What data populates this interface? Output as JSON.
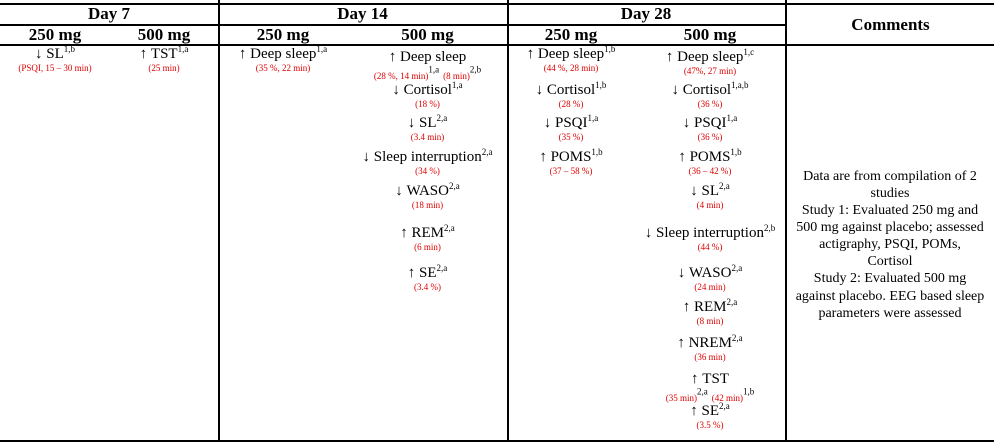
{
  "headers": {
    "day7": "Day 7",
    "day14": "Day 14",
    "day28": "Day 28",
    "comments": "Comments",
    "dose_250": "250 mg",
    "dose_500": "500 mg"
  },
  "day7_250": [
    {
      "arrow": "↓",
      "label": "SL",
      "sup": "1,b",
      "detail": "(PSQI, 15 – 30 min)"
    }
  ],
  "day7_500": [
    {
      "arrow": "↑",
      "label": "TST",
      "sup": "1,a",
      "detail": "(25 min)"
    }
  ],
  "day14_250": [
    {
      "arrow": "↑",
      "label": "Deep sleep",
      "sup": "1,a",
      "detail": "(35 %, 22 min)"
    }
  ],
  "day14_500": [
    {
      "arrow": "↑",
      "label": "Deep sleep",
      "sup": "",
      "detail": "",
      "inline": [
        {
          "detail": "(28 %, 14 min)",
          "sup": "1,a"
        },
        {
          "detail": "(8 min)",
          "sup": "2,b"
        }
      ]
    },
    {
      "arrow": "↓",
      "label": "Cortisol",
      "sup": "1,a",
      "detail": "(18 %)"
    },
    {
      "arrow": "↓",
      "label": "SL",
      "sup": "2,a",
      "detail": "(3.4 min)"
    },
    {
      "arrow": "↓",
      "label": "Sleep interruption",
      "sup": "2,a",
      "detail": "(34 %)"
    },
    {
      "arrow": "↓",
      "label": "WASO",
      "sup": "2,a",
      "detail": "(18 min)"
    },
    {
      "arrow": "↑",
      "label": "REM",
      "sup": "2,a",
      "detail": "(6 min)"
    },
    {
      "arrow": "↑",
      "label": "SE",
      "sup": "2,a",
      "detail": "(3.4 %)"
    }
  ],
  "day28_250": [
    {
      "arrow": "↑",
      "label": "Deep sleep",
      "sup": "1,b",
      "detail": "(44 %, 28 min)"
    },
    {
      "arrow": "↓",
      "label": "Cortisol",
      "sup": "1,b",
      "detail": "(28 %)"
    },
    {
      "arrow": "↓",
      "label": "PSQI",
      "sup": "1,a",
      "detail": "(35 %)"
    },
    {
      "arrow": "↑",
      "label": "POMS",
      "sup": "1,b",
      "detail": "(37 – 58 %)"
    }
  ],
  "day28_500": [
    {
      "arrow": "↑",
      "label": "Deep sleep",
      "sup": "1,c",
      "detail": "(47%, 27 min)"
    },
    {
      "arrow": "↓",
      "label": "Cortisol",
      "sup": "1,a,b",
      "detail": "(36 %)"
    },
    {
      "arrow": "↓",
      "label": "PSQI",
      "sup": "1,a",
      "detail": "(36 %)"
    },
    {
      "arrow": "↑",
      "label": "POMS",
      "sup": "1,b",
      "detail": "(36 – 42 %)"
    },
    {
      "arrow": "↓",
      "label": "SL",
      "sup": "2,a",
      "detail": "(4 min)"
    },
    {
      "arrow": "↓",
      "label": "Sleep interruption",
      "sup": "2,b",
      "detail": "(44 %)"
    },
    {
      "arrow": "↓",
      "label": "WASO",
      "sup": "2,a",
      "detail": "(24 min)"
    },
    {
      "arrow": "↑",
      "label": "REM",
      "sup": "2,a",
      "detail": "(8 min)"
    },
    {
      "arrow": "↑",
      "label": "NREM",
      "sup": "2,a",
      "detail": "(36 min)"
    },
    {
      "arrow": "↑",
      "label": "TST",
      "sup": "",
      "detail": "",
      "inline": [
        {
          "detail": "(35 min)",
          "sup": "2,a"
        },
        {
          "detail": "(42 min)",
          "sup": "1,b"
        }
      ]
    },
    {
      "arrow": "↑",
      "label": "SE",
      "sup": "2,a",
      "detail": "(3.5 %)"
    }
  ],
  "comments": [
    "Data are from compilation of 2 studies",
    "Study 1: Evaluated 250 mg and 500 mg against placebo; assessed actigraphy, PSQI, POMs, Cortisol",
    "Study 2: Evaluated 500 mg against placebo. EEG based sleep parameters were assessed"
  ]
}
